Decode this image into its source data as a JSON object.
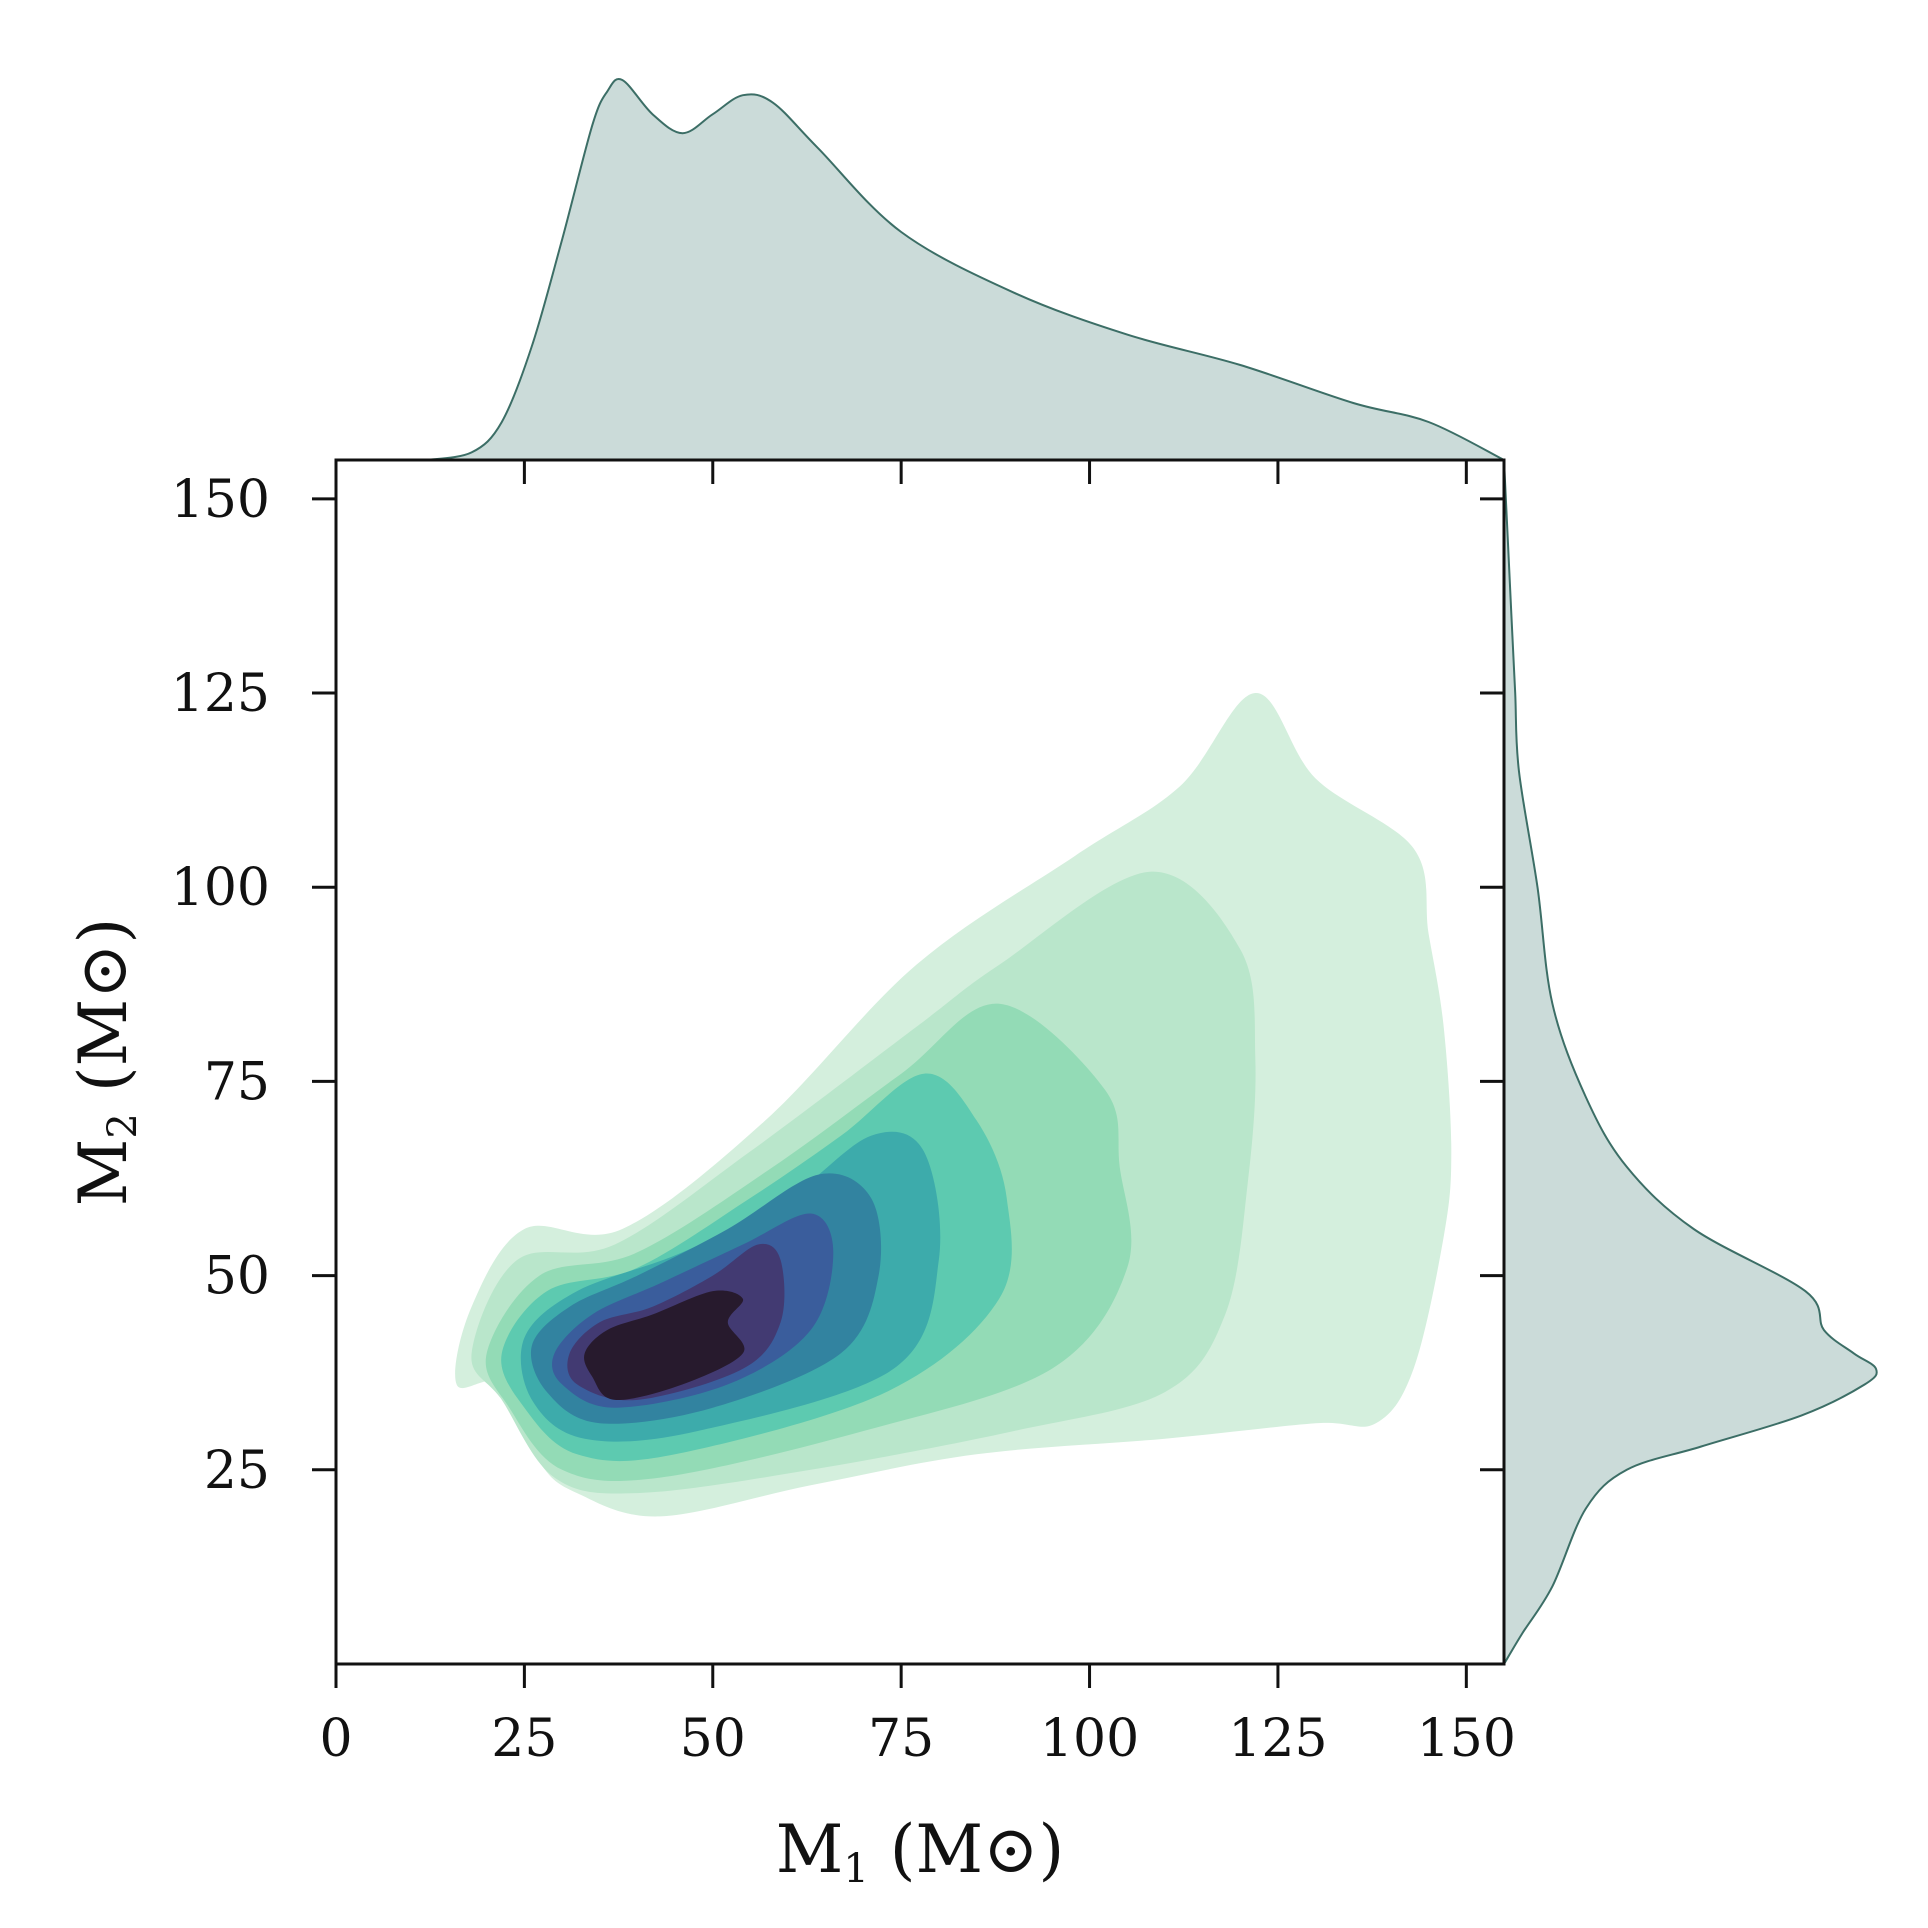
{
  "chart_data": {
    "type": "kde-joint",
    "xlabel": {
      "main": "M",
      "sub": "1",
      "unit": " (M",
      "unit_sym": "⊙",
      "close": ")"
    },
    "ylabel": {
      "main": "M",
      "sub": "2",
      "unit": " (M",
      "unit_sym": "⊙",
      "close": ")"
    },
    "xlim": [
      0,
      155
    ],
    "ylim": [
      0,
      155
    ],
    "x_ticks": [
      0,
      25,
      50,
      75,
      100,
      125,
      150
    ],
    "y_ticks": [
      25,
      50,
      75,
      100,
      125,
      150
    ],
    "x_tick_labels": [
      "0",
      "25",
      "50",
      "75",
      "100",
      "125",
      "150"
    ],
    "y_tick_labels": [
      "25",
      "50",
      "75",
      "100",
      "125",
      "150"
    ],
    "contour_colors": [
      "#d4efdd",
      "#b9e6cb",
      "#93dbb6",
      "#5dcab0",
      "#3dabab",
      "#3283a0",
      "#3a5d9c",
      "#423a72",
      "#271a2d"
    ],
    "contours": [
      [
        [
          22,
          36
        ],
        [
          27,
          26
        ],
        [
          32,
          22
        ],
        [
          43,
          19
        ],
        [
          63,
          23
        ],
        [
          85,
          27
        ],
        [
          110,
          29
        ],
        [
          130,
          31
        ],
        [
          138,
          31
        ],
        [
          143,
          38
        ],
        [
          147,
          55
        ],
        [
          148,
          66
        ],
        [
          147,
          82
        ],
        [
          145,
          94
        ],
        [
          143,
          105
        ],
        [
          130,
          114
        ],
        [
          122,
          125
        ],
        [
          112,
          113
        ],
        [
          98,
          104
        ],
        [
          77,
          90
        ],
        [
          57,
          70
        ],
        [
          38,
          56
        ],
        [
          25,
          56
        ],
        [
          18,
          46
        ],
        [
          16,
          36
        ]
      ],
      [
        [
          22,
          34
        ],
        [
          29,
          24
        ],
        [
          40,
          22
        ],
        [
          63,
          25
        ],
        [
          90,
          30
        ],
        [
          110,
          35
        ],
        [
          118,
          45
        ],
        [
          121,
          62
        ],
        [
          122,
          78
        ],
        [
          120,
          92
        ],
        [
          108,
          102
        ],
        [
          88,
          90
        ],
        [
          77,
          82
        ],
        [
          55,
          66
        ],
        [
          37,
          54
        ],
        [
          24,
          52
        ],
        [
          18,
          40
        ]
      ],
      [
        [
          23,
          33
        ],
        [
          30,
          25
        ],
        [
          43,
          24
        ],
        [
          70,
          30
        ],
        [
          95,
          38
        ],
        [
          105,
          51
        ],
        [
          104,
          64
        ],
        [
          102,
          74
        ],
        [
          88,
          85
        ],
        [
          75,
          76
        ],
        [
          58,
          64
        ],
        [
          40,
          53
        ],
        [
          27,
          50
        ],
        [
          20,
          40
        ]
      ],
      [
        [
          25,
          33
        ],
        [
          32,
          27
        ],
        [
          45,
          27
        ],
        [
          73,
          35
        ],
        [
          88,
          47
        ],
        [
          89,
          60
        ],
        [
          85,
          70
        ],
        [
          78,
          76
        ],
        [
          67,
          68
        ],
        [
          55,
          60
        ],
        [
          40,
          51
        ],
        [
          28,
          48
        ],
        [
          22,
          40
        ]
      ],
      [
        [
          26,
          34
        ],
        [
          33,
          29
        ],
        [
          48,
          30
        ],
        [
          74,
          38
        ],
        [
          80,
          52
        ],
        [
          78,
          66
        ],
        [
          71,
          68
        ],
        [
          60,
          60
        ],
        [
          46,
          53
        ],
        [
          32,
          48
        ],
        [
          25,
          42
        ]
      ],
      [
        [
          28,
          35
        ],
        [
          35,
          31
        ],
        [
          50,
          33
        ],
        [
          67,
          40
        ],
        [
          72,
          50
        ],
        [
          71,
          60
        ],
        [
          64,
          63
        ],
        [
          52,
          56
        ],
        [
          40,
          50
        ],
        [
          31,
          46
        ],
        [
          26,
          41
        ]
      ],
      [
        [
          30,
          36
        ],
        [
          37,
          33
        ],
        [
          52,
          36
        ],
        [
          63,
          43
        ],
        [
          66,
          53
        ],
        [
          63,
          58
        ],
        [
          54,
          54
        ],
        [
          43,
          49
        ],
        [
          34,
          45
        ],
        [
          29,
          40
        ]
      ],
      [
        [
          32,
          36
        ],
        [
          40,
          34
        ],
        [
          54,
          38
        ],
        [
          59,
          44
        ],
        [
          59,
          52
        ],
        [
          56,
          54
        ],
        [
          50,
          50
        ],
        [
          42,
          46
        ],
        [
          35,
          44
        ],
        [
          31,
          40
        ]
      ],
      [
        [
          34,
          37
        ],
        [
          37,
          34
        ],
        [
          46,
          36
        ],
        [
          54,
          40
        ],
        [
          52,
          44
        ],
        [
          54,
          47
        ],
        [
          50,
          48
        ],
        [
          42,
          45
        ],
        [
          36,
          43
        ],
        [
          33,
          40
        ]
      ]
    ],
    "marginal_x": {
      "x": [
        12,
        18,
        22,
        26,
        30,
        34,
        36,
        38,
        42,
        46,
        50,
        54,
        58,
        64,
        75,
        90,
        105,
        120,
        135,
        145,
        155
      ],
      "density": [
        0.0,
        0.02,
        0.1,
        0.3,
        0.58,
        0.88,
        0.97,
        1.0,
        0.91,
        0.86,
        0.91,
        0.96,
        0.94,
        0.82,
        0.6,
        0.44,
        0.33,
        0.25,
        0.15,
        0.1,
        0.0
      ]
    },
    "marginal_y": {
      "y": [
        0,
        4,
        10,
        20,
        25,
        28,
        32,
        36,
        38,
        40,
        43,
        48,
        56,
        64,
        73,
        85,
        100,
        115,
        125,
        135,
        155
      ],
      "density": [
        0.0,
        0.05,
        0.13,
        0.22,
        0.33,
        0.53,
        0.8,
        0.97,
        1.0,
        0.94,
        0.86,
        0.81,
        0.51,
        0.33,
        0.22,
        0.13,
        0.09,
        0.04,
        0.03,
        0.02,
        0.0
      ]
    },
    "marginal_fill": "#cbdbd9",
    "marginal_line": "#3c6e66",
    "grid": false,
    "legend": "none"
  }
}
